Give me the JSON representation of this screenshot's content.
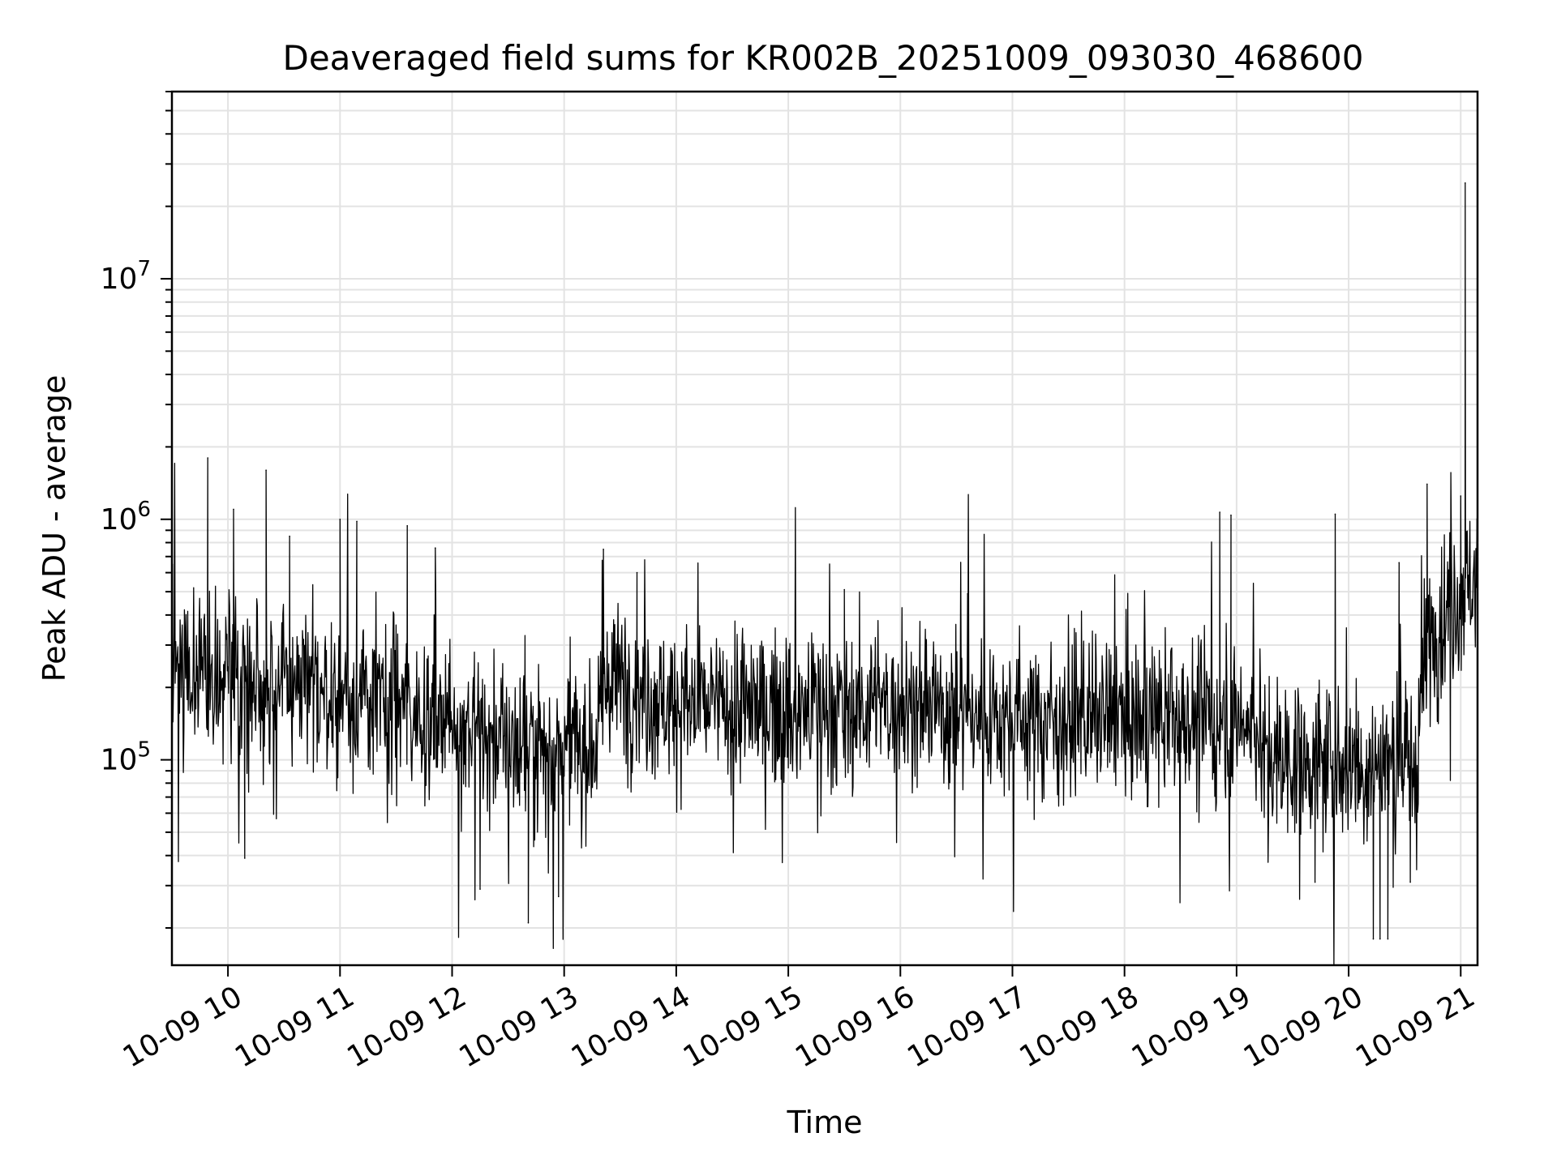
{
  "chart_data": {
    "type": "line",
    "title": "Deaveraged field sums for KR002B_20251009_093030_468600",
    "xlabel": "Time",
    "ylabel": "Peak ADU - average",
    "yscale": "log",
    "ylim": [
      14000,
      60000000
    ],
    "xlim_hours": [
      9.5,
      21.15
    ],
    "grid": true,
    "line_color": "#000000",
    "x_ticks": [
      {
        "hour": 10,
        "label": "10-09 10"
      },
      {
        "hour": 11,
        "label": "10-09 11"
      },
      {
        "hour": 12,
        "label": "10-09 12"
      },
      {
        "hour": 13,
        "label": "10-09 13"
      },
      {
        "hour": 14,
        "label": "10-09 14"
      },
      {
        "hour": 15,
        "label": "10-09 15"
      },
      {
        "hour": 16,
        "label": "10-09 16"
      },
      {
        "hour": 17,
        "label": "10-09 17"
      },
      {
        "hour": 18,
        "label": "10-09 18"
      },
      {
        "hour": 19,
        "label": "10-09 19"
      },
      {
        "hour": 20,
        "label": "10-09 20"
      },
      {
        "hour": 21,
        "label": "10-09 21"
      }
    ],
    "y_ticks": [
      {
        "value": 100000,
        "base": "10",
        "exp": "5"
      },
      {
        "value": 1000000,
        "base": "10",
        "exp": "6"
      },
      {
        "value": 10000000,
        "base": "10",
        "exp": "7"
      }
    ],
    "baseline_profile": [
      [
        9.5,
        260000
      ],
      [
        10.0,
        230000
      ],
      [
        10.5,
        200000
      ],
      [
        11.0,
        185000
      ],
      [
        11.5,
        170000
      ],
      [
        12.0,
        150000
      ],
      [
        12.5,
        120000
      ],
      [
        13.0,
        115000
      ],
      [
        13.3,
        120000
      ],
      [
        13.4,
        220000
      ],
      [
        14.0,
        170000
      ],
      [
        14.5,
        165000
      ],
      [
        15.0,
        160000
      ],
      [
        15.5,
        165000
      ],
      [
        16.0,
        170000
      ],
      [
        16.5,
        160000
      ],
      [
        17.0,
        150000
      ],
      [
        18.0,
        145000
      ],
      [
        18.8,
        145000
      ],
      [
        19.2,
        140000
      ],
      [
        19.25,
        105000
      ],
      [
        20.0,
        95000
      ],
      [
        20.6,
        100000
      ],
      [
        20.7,
        300000
      ],
      [
        21.0,
        520000
      ],
      [
        21.15,
        600000
      ]
    ],
    "noise_decades": 0.22,
    "sample_count": 2400,
    "spikes": [
      {
        "hour": 9.82,
        "value": 1800000
      },
      {
        "hour": 10.34,
        "value": 1600000
      },
      {
        "hour": 10.05,
        "value": 1100000
      },
      {
        "hour": 10.55,
        "value": 850000
      },
      {
        "hour": 11.0,
        "value": 1000000
      },
      {
        "hour": 11.15,
        "value": 980000
      },
      {
        "hour": 11.6,
        "value": 940000
      },
      {
        "hour": 11.85,
        "value": 760000
      },
      {
        "hour": 13.35,
        "value": 750000
      },
      {
        "hour": 13.65,
        "value": 600000
      },
      {
        "hour": 15.5,
        "value": 510000
      },
      {
        "hour": 16.6,
        "value": 490000
      },
      {
        "hour": 18.85,
        "value": 1070000
      },
      {
        "hour": 18.95,
        "value": 1040000
      },
      {
        "hour": 19.88,
        "value": 1050000
      },
      {
        "hour": 20.45,
        "value": 660000
      },
      {
        "hour": 20.7,
        "value": 1400000
      },
      {
        "hour": 21.0,
        "value": 1250000
      },
      {
        "hour": 21.04,
        "value": 25000000
      },
      {
        "hour": 12.68,
        "value": 21000
      },
      {
        "hour": 12.95,
        "value": 27000
      },
      {
        "hour": 19.7,
        "value": 31000
      },
      {
        "hour": 20.22,
        "value": 18000
      },
      {
        "hour": 20.28,
        "value": 18000
      },
      {
        "hour": 20.35,
        "value": 18000
      },
      {
        "hour": 20.55,
        "value": 31000
      },
      {
        "hour": 12.25,
        "value": 29000
      },
      {
        "hour": 10.15,
        "value": 39000
      }
    ]
  }
}
